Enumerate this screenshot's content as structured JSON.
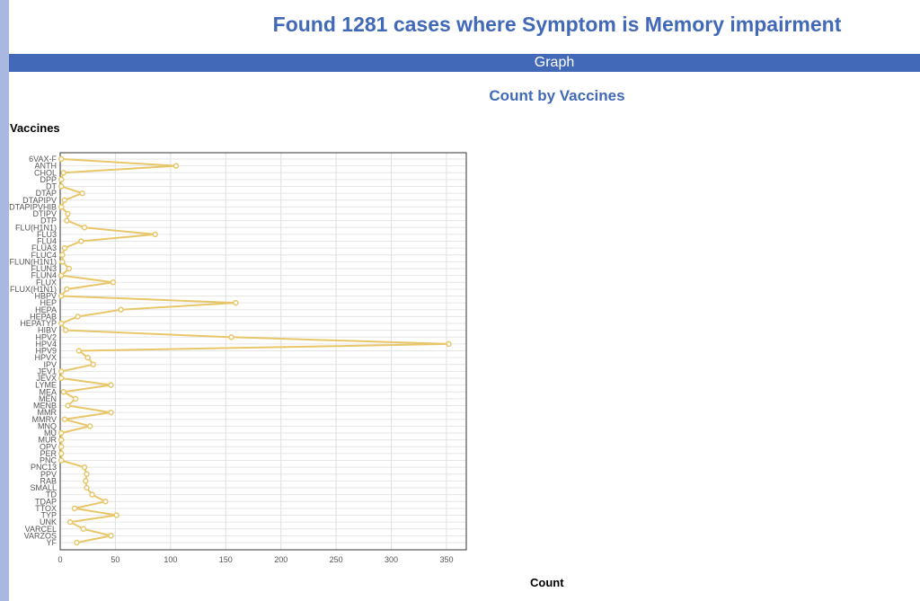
{
  "header": {
    "title": "Found 1281 cases where Symptom is Memory impairment",
    "graph_label": "Graph"
  },
  "chart_data": {
    "type": "line",
    "title": "Count by Vaccines",
    "xlabel": "Count",
    "ylabel": "Vaccines",
    "xlim": [
      0,
      360
    ],
    "x_ticks": [
      0,
      50,
      100,
      150,
      200,
      250,
      300,
      350
    ],
    "grid": true,
    "legend": "none",
    "series_color": "#e8c66a",
    "categories": [
      "6VAX-F",
      "ANTH",
      "CHOL",
      "DPP",
      "DT",
      "DTAP",
      "DTAPIPV",
      "DTAPIPVHIB",
      "DTIPV",
      "DTP",
      "FLU(H1N1)",
      "FLU3",
      "FLU4",
      "FLUA3",
      "FLUC4",
      "FLUN(H1N1)",
      "FLUN3",
      "FLUN4",
      "FLUX",
      "FLUX(H1N1)",
      "HBPV",
      "HEP",
      "HEPA",
      "HEPAB",
      "HEPATYP",
      "HIBV",
      "HPV2",
      "HPV4",
      "HPV9",
      "HPVX",
      "IPV",
      "JEV1",
      "JEVX",
      "LYME",
      "MEA",
      "MEN",
      "MENB",
      "MMR",
      "MMRV",
      "MNQ",
      "MU",
      "MUR",
      "OPV",
      "PER",
      "PNC",
      "PNC13",
      "PPV",
      "RAB",
      "SMALL",
      "TD",
      "TDAP",
      "TTOX",
      "TYP",
      "UNK",
      "VARCEL",
      "VARZOS",
      "YF"
    ],
    "values": [
      1,
      105,
      3,
      1,
      1,
      20,
      4,
      1,
      7,
      6,
      22,
      86,
      19,
      4,
      2,
      2,
      8,
      1,
      48,
      6,
      1,
      159,
      55,
      16,
      1,
      5,
      155,
      352,
      17,
      25,
      30,
      1,
      1,
      46,
      3,
      14,
      7,
      46,
      4,
      27,
      1,
      1,
      1,
      1,
      1,
      22,
      24,
      23,
      24,
      29,
      41,
      13,
      51,
      9,
      21,
      46,
      15
    ]
  }
}
